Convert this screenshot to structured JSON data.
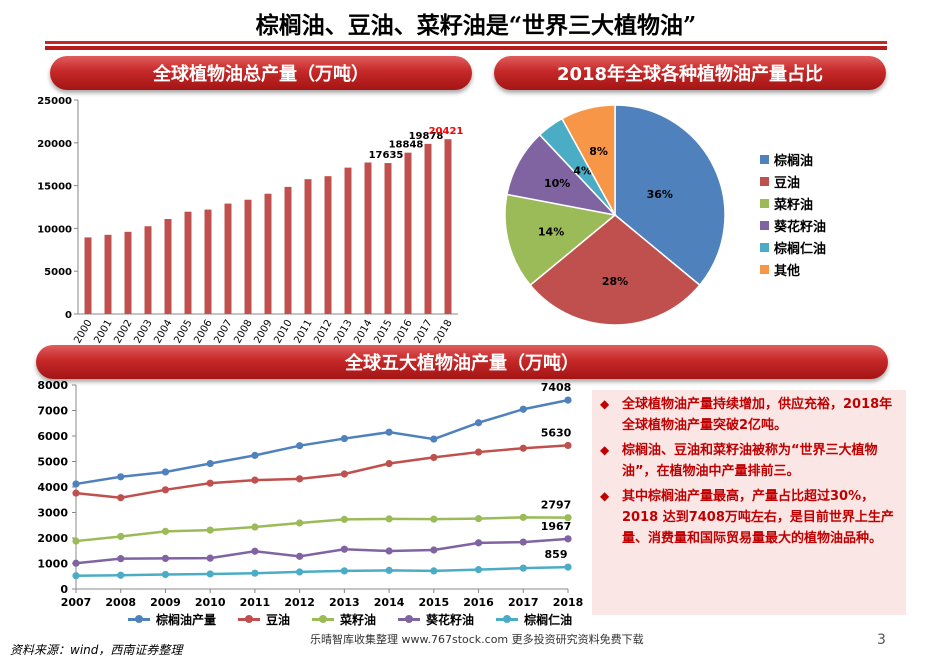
{
  "title": "棕榈油、豆油、菜籽油是“世界三大植物油”",
  "banners": {
    "total": "全球植物油总产量（万吨）",
    "share": "2018年全球各种植物油产量占比",
    "five": "全球五大植物油产量（万吨）"
  },
  "colors": {
    "accent": "#c62828",
    "note_bg": "#fbe6e6"
  },
  "chart_data": [
    {
      "type": "bar",
      "title": "全球植物油总产量（万吨）",
      "categories": [
        "2000",
        "2001",
        "2002",
        "2003",
        "2004",
        "2005",
        "2006",
        "2007",
        "2008",
        "2009",
        "2010",
        "2011",
        "2012",
        "2013",
        "2014",
        "2015",
        "2016",
        "2017",
        "2018"
      ],
      "values": [
        8950,
        9250,
        9600,
        10250,
        11100,
        11950,
        12200,
        12900,
        13350,
        14050,
        14850,
        15750,
        16100,
        17100,
        17700,
        17635,
        18848,
        19878,
        20421
      ],
      "data_labels": {
        "15": "17635",
        "16": "18848",
        "17": "19878",
        "18": "20421"
      },
      "highlight_label_color": "#ff0000",
      "ylim": [
        0,
        25000
      ],
      "yticks": [
        "0",
        "5000",
        "10000",
        "15000",
        "20000",
        "25000"
      ],
      "color": "#c0504d",
      "grid": false
    },
    {
      "type": "pie",
      "title": "2018年全球各种植物油产量占比",
      "labels": [
        "棕榈油",
        "豆油",
        "菜籽油",
        "葵花籽油",
        "棕榈仁油",
        "其他"
      ],
      "values": [
        36,
        28,
        14,
        10,
        4,
        8
      ],
      "value_labels": [
        "36%",
        "28%",
        "14%",
        "10%",
        "4%",
        "8%"
      ],
      "colors": [
        "#4f81bd",
        "#c0504d",
        "#9bbb59",
        "#8064a2",
        "#4bacc6",
        "#f79646"
      ],
      "legend": "right"
    },
    {
      "type": "line",
      "title": "全球五大植物油产量（万吨）",
      "x": [
        "2007",
        "2008",
        "2009",
        "2010",
        "2011",
        "2012",
        "2013",
        "2014",
        "2015",
        "2016",
        "2017",
        "2018"
      ],
      "ylim": [
        0,
        8000
      ],
      "yticks": [
        "0",
        "1000",
        "2000",
        "3000",
        "4000",
        "5000",
        "6000",
        "7000",
        "8000"
      ],
      "legend": "bottom",
      "series": [
        {
          "name": "棕榈油产量",
          "color": "#4f81bd",
          "values": [
            4120,
            4400,
            4590,
            4920,
            5240,
            5620,
            5900,
            6150,
            5880,
            6520,
            7050,
            7408
          ],
          "end_label": "7408"
        },
        {
          "name": "豆油",
          "color": "#c0504d",
          "values": [
            3760,
            3580,
            3890,
            4150,
            4270,
            4320,
            4510,
            4920,
            5160,
            5370,
            5520,
            5630
          ],
          "end_label": "5630"
        },
        {
          "name": "菜籽油",
          "color": "#9bbb59",
          "values": [
            1880,
            2060,
            2260,
            2310,
            2430,
            2590,
            2730,
            2750,
            2740,
            2760,
            2810,
            2797
          ],
          "end_label": "2797"
        },
        {
          "name": "葵花籽油",
          "color": "#8064a2",
          "values": [
            1010,
            1190,
            1200,
            1210,
            1480,
            1280,
            1560,
            1490,
            1530,
            1810,
            1840,
            1967
          ],
          "end_label": "1967"
        },
        {
          "name": "棕榈仁油",
          "color": "#4bacc6",
          "values": [
            520,
            540,
            570,
            590,
            620,
            670,
            710,
            730,
            710,
            760,
            820,
            859
          ],
          "end_label": "859"
        }
      ]
    }
  ],
  "notes": [
    "全球植物油产量持续增加，供应充裕，2018年全球植物油产量突破2亿吨。",
    "棕榈油、豆油和菜籽油被称为“世界三大植物油”，在植物油中产量排前三。",
    "其中棕榈油产量最高，产量占比超过30%，2018 达到7408万吨左右，是目前世界上生产量、消费量和国际贸易量最大的植物油品种。"
  ],
  "note_bullet": "◆",
  "source": "资料来源：wind，西南证券整理",
  "watermark": "乐晴智库收集整理 www.767stock.com 更多投资研究资料免费下载",
  "page_number": "3"
}
